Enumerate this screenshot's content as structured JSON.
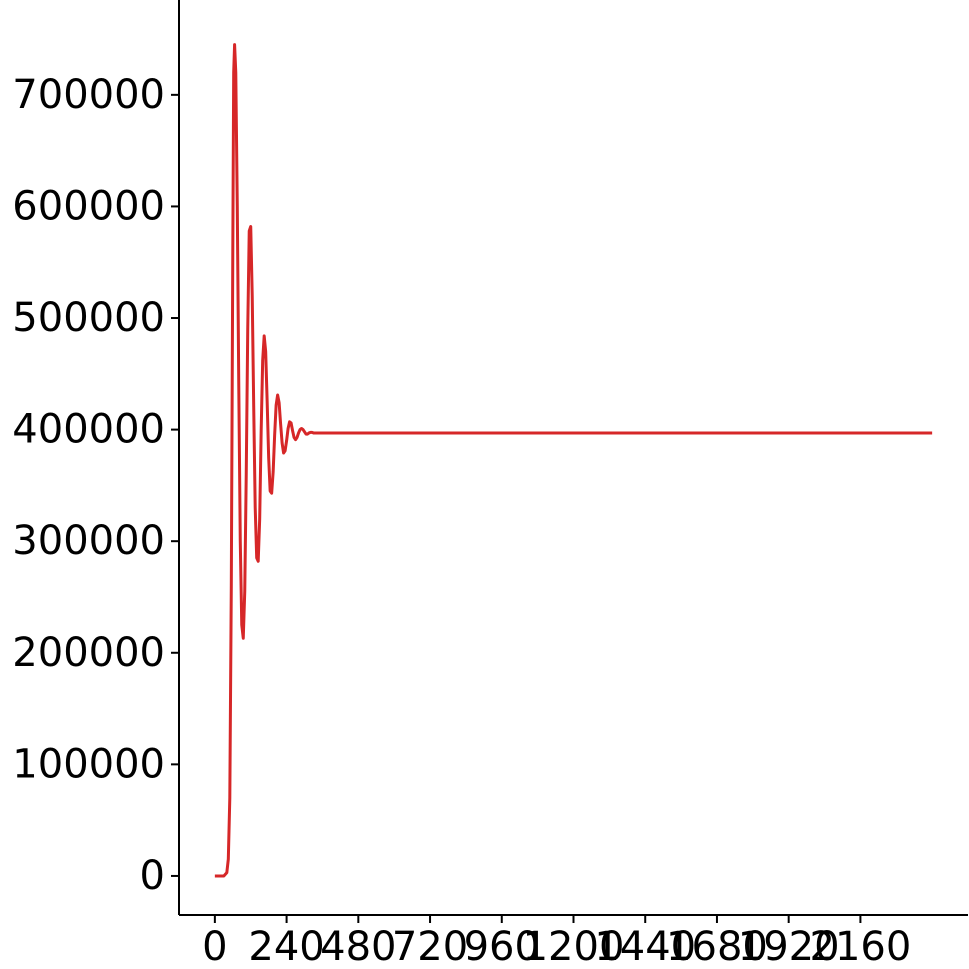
{
  "chart_data": {
    "type": "line",
    "title": "",
    "xlabel": "",
    "ylabel": "",
    "xlim": [
      -120,
      2520
    ],
    "ylim": [
      -35000,
      785000
    ],
    "x_ticks": [
      0,
      240,
      480,
      720,
      960,
      1200,
      1440,
      1680,
      1920,
      2160
    ],
    "x_tick_labels": [
      "0",
      "240",
      "480",
      "720",
      "960",
      "1200",
      "1440",
      "1680",
      "1920",
      "2160"
    ],
    "y_ticks": [
      0,
      100000,
      200000,
      300000,
      400000,
      500000,
      600000,
      700000
    ],
    "y_tick_labels": [
      "0",
      "100000",
      "200000",
      "300000",
      "400000",
      "500000",
      "600000",
      "700000"
    ],
    "grid": false,
    "legend": "none",
    "series": [
      {
        "color": "#d62728",
        "x": [
          0,
          30,
          40,
          45,
          50,
          55,
          60,
          63,
          66,
          70,
          75,
          80,
          85,
          90,
          95,
          100,
          105,
          110,
          115,
          120,
          125,
          130,
          135,
          140,
          145,
          150,
          155,
          160,
          165,
          170,
          175,
          180,
          185,
          190,
          195,
          200,
          205,
          210,
          215,
          220,
          225,
          230,
          235,
          240,
          245,
          250,
          255,
          260,
          265,
          270,
          275,
          280,
          285,
          290,
          295,
          300,
          305,
          310,
          315,
          320,
          325,
          330,
          335,
          340,
          345,
          350,
          355,
          360,
          365,
          370,
          375,
          380,
          385,
          390,
          395,
          400,
          405,
          410,
          415,
          420,
          425,
          430,
          440,
          450,
          460,
          470,
          480,
          500,
          520,
          600,
          800,
          1000,
          1200,
          1400,
          1600,
          1800,
          2000,
          2200,
          2400
        ],
        "y": [
          0,
          0,
          3000,
          15000,
          70000,
          260000,
          560000,
          720000,
          745000,
          720000,
          600000,
          440000,
          300000,
          225000,
          213000,
          255000,
          360000,
          490000,
          578000,
          582000,
          520000,
          420000,
          330000,
          285000,
          282000,
          320000,
          400000,
          462000,
          484000,
          470000,
          425000,
          375000,
          345000,
          343000,
          362000,
          395000,
          422000,
          431000,
          424000,
          405000,
          388000,
          379000,
          381000,
          390000,
          401000,
          407000,
          406000,
          399000,
          393000,
          391000,
          393000,
          397000,
          400000,
          401000,
          400000,
          398000,
          396000,
          396000,
          397000,
          397500,
          397500,
          397000,
          397000,
          397000,
          397000,
          397000,
          397000,
          397000,
          397000,
          397000,
          397000,
          397000,
          397000,
          397000,
          397000,
          397000,
          397000,
          397000,
          397000,
          397000,
          397000,
          397000,
          397000,
          397000,
          397000,
          397000,
          397000,
          397000,
          397000,
          397000,
          397000,
          397000,
          397000,
          397000,
          397000,
          397000,
          397000,
          397000,
          397000
        ]
      }
    ]
  }
}
